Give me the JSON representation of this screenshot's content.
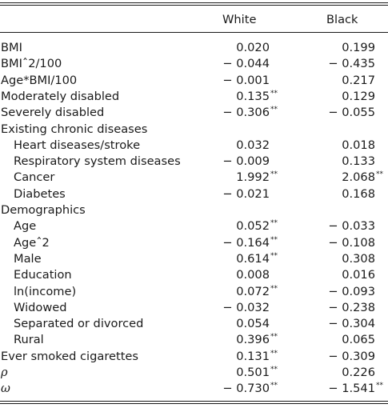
{
  "columns": {
    "white": "White",
    "black": "Black"
  },
  "rows": [
    {
      "label": "BMI",
      "indent": false,
      "white": "0.020",
      "white_sig": "",
      "black": "0.199",
      "black_sig": ""
    },
    {
      "label": "BMIˆ2/100",
      "indent": false,
      "white": "− 0.044",
      "white_sig": "",
      "black": "− 0.435",
      "black_sig": ""
    },
    {
      "label": "Age*BMI/100",
      "indent": false,
      "white": "− 0.001",
      "white_sig": "",
      "black": "0.217",
      "black_sig": ""
    },
    {
      "label": "Moderately disabled",
      "indent": false,
      "white": "0.135",
      "white_sig": "**",
      "black": "0.129",
      "black_sig": ""
    },
    {
      "label": "Severely disabled",
      "indent": false,
      "white": "− 0.306",
      "white_sig": "**",
      "black": "− 0.055",
      "black_sig": ""
    },
    {
      "label": "Existing chronic diseases",
      "indent": false,
      "white": "",
      "white_sig": "",
      "black": "",
      "black_sig": ""
    },
    {
      "label": "Heart diseases/stroke",
      "indent": true,
      "white": "0.032",
      "white_sig": "",
      "black": "0.018",
      "black_sig": ""
    },
    {
      "label": "Respiratory system diseases",
      "indent": true,
      "white": "− 0.009",
      "white_sig": "",
      "black": "0.133",
      "black_sig": ""
    },
    {
      "label": "Cancer",
      "indent": true,
      "white": "1.992",
      "white_sig": "**",
      "black": "2.068",
      "black_sig": "**"
    },
    {
      "label": "Diabetes",
      "indent": true,
      "white": "− 0.021",
      "white_sig": "",
      "black": "0.168",
      "black_sig": ""
    },
    {
      "label": "Demographics",
      "indent": false,
      "white": "",
      "white_sig": "",
      "black": "",
      "black_sig": ""
    },
    {
      "label": "Age",
      "indent": true,
      "white": "0.052",
      "white_sig": "**",
      "black": "− 0.033",
      "black_sig": ""
    },
    {
      "label": "Ageˆ2",
      "indent": true,
      "white": "− 0.164",
      "white_sig": "**",
      "black": "− 0.108",
      "black_sig": ""
    },
    {
      "label": "Male",
      "indent": true,
      "white": "0.614",
      "white_sig": "**",
      "black": "0.308",
      "black_sig": ""
    },
    {
      "label": "Education",
      "indent": true,
      "white": "0.008",
      "white_sig": "",
      "black": "0.016",
      "black_sig": ""
    },
    {
      "label": "ln(income)",
      "indent": true,
      "white": "0.072",
      "white_sig": "**",
      "black": "− 0.093",
      "black_sig": ""
    },
    {
      "label": "Widowed",
      "indent": true,
      "white": "− 0.032",
      "white_sig": "",
      "black": "− 0.238",
      "black_sig": ""
    },
    {
      "label": "Separated or divorced",
      "indent": true,
      "white": "0.054",
      "white_sig": "",
      "black": "− 0.304",
      "black_sig": ""
    },
    {
      "label": "Rural",
      "indent": true,
      "white": "0.396",
      "white_sig": "**",
      "black": "0.065",
      "black_sig": ""
    },
    {
      "label": "Ever smoked cigarettes",
      "indent": false,
      "white": "0.131",
      "white_sig": "**",
      "black": "− 0.309",
      "black_sig": ""
    },
    {
      "label": "ρ",
      "indent": false,
      "italic": true,
      "white": "0.501",
      "white_sig": "**",
      "black": "0.226",
      "black_sig": ""
    },
    {
      "label": "ω",
      "indent": false,
      "italic": true,
      "white": "− 0.730",
      "white_sig": "**",
      "black": "− 1.541",
      "black_sig": "**"
    }
  ]
}
